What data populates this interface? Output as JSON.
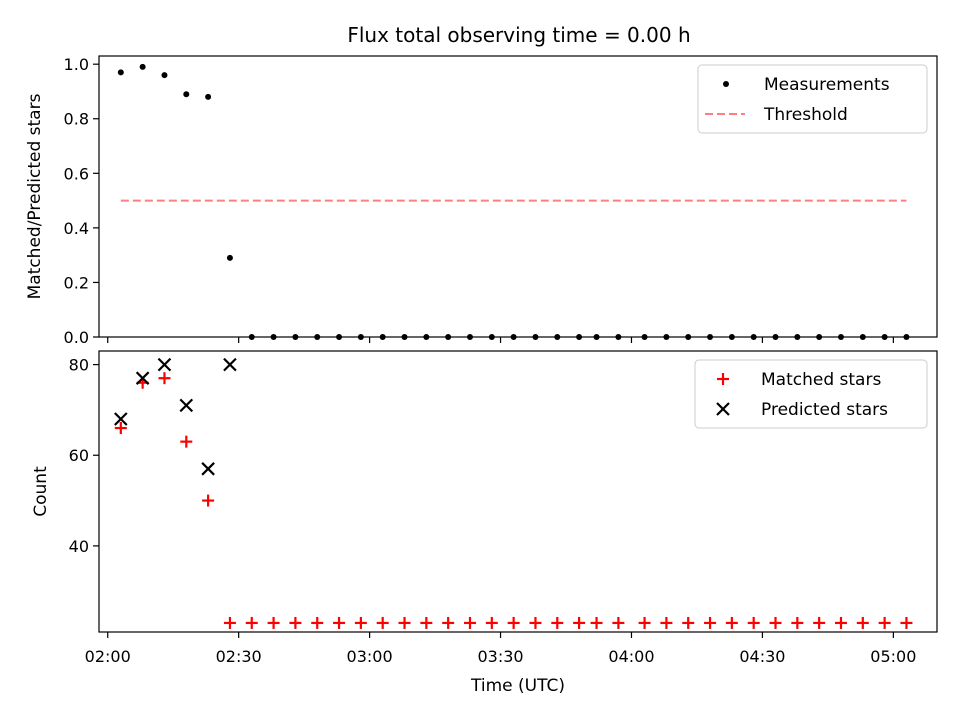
{
  "figure": {
    "title": "Flux total observing time = 0.00 h",
    "xlabel": "Time (UTC)"
  },
  "chart_data": [
    {
      "type": "scatter",
      "ylabel": "Matched/Predicted stars",
      "xlim": [
        "01:58",
        "05:10"
      ],
      "ylim": [
        0,
        1.03
      ],
      "y_ticks": [
        0.0,
        0.2,
        0.4,
        0.6,
        0.8,
        1.0
      ],
      "y_tick_labels": [
        "0.0",
        "0.2",
        "0.4",
        "0.6",
        "0.8",
        "1.0"
      ],
      "legend_position": "top-right",
      "series": [
        {
          "name": "Measurements",
          "marker": "dot",
          "color": "#000000",
          "x": [
            "02:03",
            "02:08",
            "02:13",
            "02:18",
            "02:23",
            "02:28",
            "02:33",
            "02:38",
            "02:43",
            "02:48",
            "02:53",
            "02:58",
            "03:03",
            "03:08",
            "03:13",
            "03:18",
            "03:23",
            "03:28",
            "03:33",
            "03:38",
            "03:43",
            "03:48",
            "03:52",
            "03:57",
            "04:03",
            "04:08",
            "04:13",
            "04:18",
            "04:23",
            "04:28",
            "04:33",
            "04:38",
            "04:43",
            "04:48",
            "04:53",
            "04:58",
            "05:03"
          ],
          "y": [
            0.97,
            0.99,
            0.96,
            0.89,
            0.88,
            0.29,
            0,
            0,
            0,
            0,
            0,
            0,
            0,
            0,
            0,
            0,
            0,
            0,
            0,
            0,
            0,
            0,
            0,
            0,
            0,
            0,
            0,
            0,
            0,
            0,
            0,
            0,
            0,
            0,
            0,
            0,
            0
          ]
        },
        {
          "name": "Threshold",
          "style": "dashed",
          "color": "#ff7f7f",
          "x": [
            "02:03",
            "05:03"
          ],
          "y": [
            0.5,
            0.5
          ]
        }
      ]
    },
    {
      "type": "scatter",
      "ylabel": "Count",
      "xlim": [
        "01:58",
        "05:10"
      ],
      "ylim": [
        21,
        83
      ],
      "y_ticks": [
        40,
        60,
        80
      ],
      "y_tick_labels": [
        "40",
        "60",
        "80"
      ],
      "x_ticks": [
        "02:00",
        "02:30",
        "03:00",
        "03:30",
        "04:00",
        "04:30",
        "05:00"
      ],
      "x_tick_labels": [
        "02:00",
        "02:30",
        "03:00",
        "03:30",
        "04:00",
        "04:30",
        "05:00"
      ],
      "legend_position": "top-right",
      "series": [
        {
          "name": "Matched stars",
          "marker": "plus",
          "color": "#ff0000",
          "x": [
            "02:03",
            "02:08",
            "02:13",
            "02:18",
            "02:23",
            "02:28",
            "02:33",
            "02:38",
            "02:43",
            "02:48",
            "02:53",
            "02:58",
            "03:03",
            "03:08",
            "03:13",
            "03:18",
            "03:23",
            "03:28",
            "03:33",
            "03:38",
            "03:43",
            "03:48",
            "03:52",
            "03:57",
            "04:03",
            "04:08",
            "04:13",
            "04:18",
            "04:23",
            "04:28",
            "04:33",
            "04:38",
            "04:43",
            "04:48",
            "04:53",
            "04:58",
            "05:03"
          ],
          "y": [
            66,
            76,
            77,
            63,
            50,
            23,
            23,
            23,
            23,
            23,
            23,
            23,
            23,
            23,
            23,
            23,
            23,
            23,
            23,
            23,
            23,
            23,
            23,
            23,
            23,
            23,
            23,
            23,
            23,
            23,
            23,
            23,
            23,
            23,
            23,
            23,
            23
          ]
        },
        {
          "name": "Predicted stars",
          "marker": "x",
          "color": "#000000",
          "x": [
            "02:03",
            "02:08",
            "02:13",
            "02:18",
            "02:23",
            "02:28"
          ],
          "y": [
            68,
            77,
            80,
            71,
            57,
            80
          ]
        }
      ]
    }
  ]
}
